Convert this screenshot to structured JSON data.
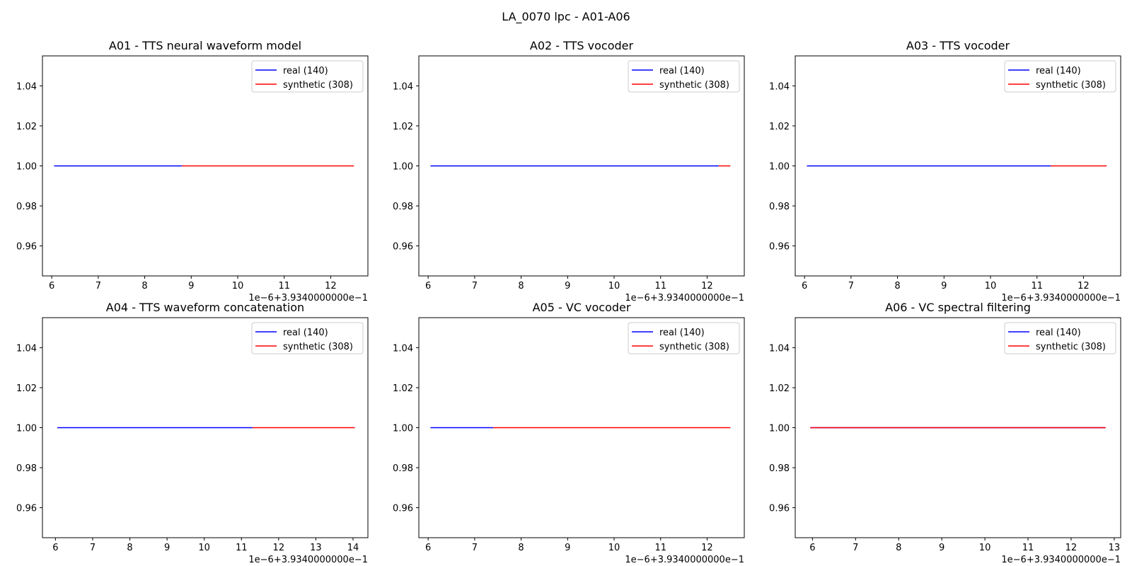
{
  "figure": {
    "title": "LA_0070 lpc - A01-A06"
  },
  "colors": {
    "real": "#0000ff",
    "synthetic": "#ff0000"
  },
  "chart_data": [
    {
      "type": "line",
      "title": "A01 - TTS neural waveform model",
      "x_offset_label": "1e−6+3.9340000000e−1",
      "xticks": [
        6,
        7,
        8,
        9,
        10,
        11,
        12
      ],
      "xlim": [
        5.8,
        12.8
      ],
      "yticks": [
        "0.96",
        "0.98",
        "1.00",
        "1.02",
        "1.04"
      ],
      "ylim": [
        0.945,
        1.055
      ],
      "legend": "top-right",
      "series": [
        {
          "name": "real (140)",
          "color": "#0000ff",
          "x": [
            6.05,
            8.8
          ],
          "y": [
            1.0,
            1.0
          ]
        },
        {
          "name": "synthetic (308)",
          "color": "#ff0000",
          "x": [
            8.8,
            12.5
          ],
          "y": [
            1.0,
            1.0
          ]
        }
      ]
    },
    {
      "type": "line",
      "title": "A02 - TTS vocoder",
      "x_offset_label": "1e−6+3.9340000000e−1",
      "xticks": [
        6,
        7,
        8,
        9,
        10,
        11,
        12
      ],
      "xlim": [
        5.8,
        12.8
      ],
      "yticks": [
        "0.96",
        "0.98",
        "1.00",
        "1.02",
        "1.04"
      ],
      "ylim": [
        0.945,
        1.055
      ],
      "legend": "top-right",
      "series": [
        {
          "name": "real (140)",
          "color": "#0000ff",
          "x": [
            6.05,
            12.25
          ],
          "y": [
            1.0,
            1.0
          ]
        },
        {
          "name": "synthetic (308)",
          "color": "#ff0000",
          "x": [
            12.25,
            12.5
          ],
          "y": [
            1.0,
            1.0
          ]
        }
      ]
    },
    {
      "type": "line",
      "title": "A03 - TTS vocoder",
      "x_offset_label": "1e−6+3.9340000000e−1",
      "xticks": [
        6,
        7,
        8,
        9,
        10,
        11,
        12
      ],
      "xlim": [
        5.8,
        12.8
      ],
      "yticks": [
        "0.96",
        "0.98",
        "1.00",
        "1.02",
        "1.04"
      ],
      "ylim": [
        0.945,
        1.055
      ],
      "legend": "top-right",
      "series": [
        {
          "name": "real (140)",
          "color": "#0000ff",
          "x": [
            6.05,
            11.3
          ],
          "y": [
            1.0,
            1.0
          ]
        },
        {
          "name": "synthetic (308)",
          "color": "#ff0000",
          "x": [
            11.3,
            12.5
          ],
          "y": [
            1.0,
            1.0
          ]
        }
      ]
    },
    {
      "type": "line",
      "title": "A04 - TTS waveform concatenation",
      "x_offset_label": "1e−6+3.9340000000e−1",
      "xticks": [
        6,
        7,
        8,
        9,
        10,
        11,
        12,
        13,
        14
      ],
      "xlim": [
        5.65,
        14.4
      ],
      "yticks": [
        "0.96",
        "0.98",
        "1.00",
        "1.02",
        "1.04"
      ],
      "ylim": [
        0.945,
        1.055
      ],
      "legend": "top-right",
      "series": [
        {
          "name": "real (140)",
          "color": "#0000ff",
          "x": [
            6.05,
            11.3
          ],
          "y": [
            1.0,
            1.0
          ]
        },
        {
          "name": "synthetic (308)",
          "color": "#ff0000",
          "x": [
            11.3,
            14.05
          ],
          "y": [
            1.0,
            1.0
          ]
        }
      ]
    },
    {
      "type": "line",
      "title": "A05 - VC vocoder",
      "x_offset_label": "1e−6+3.9340000000e−1",
      "xticks": [
        6,
        7,
        8,
        9,
        10,
        11,
        12
      ],
      "xlim": [
        5.8,
        12.8
      ],
      "yticks": [
        "0.96",
        "0.98",
        "1.00",
        "1.02",
        "1.04"
      ],
      "ylim": [
        0.945,
        1.055
      ],
      "legend": "top-right",
      "series": [
        {
          "name": "real (140)",
          "color": "#0000ff",
          "x": [
            6.05,
            7.4
          ],
          "y": [
            1.0,
            1.0
          ]
        },
        {
          "name": "synthetic (308)",
          "color": "#ff0000",
          "x": [
            7.4,
            12.5
          ],
          "y": [
            1.0,
            1.0
          ]
        }
      ]
    },
    {
      "type": "line",
      "title": "A06 - VC spectral filtering",
      "x_offset_label": "1e−6+3.9340000000e−1",
      "xticks": [
        6,
        7,
        8,
        9,
        10,
        11,
        12,
        13
      ],
      "xlim": [
        5.6,
        13.15
      ],
      "yticks": [
        "0.96",
        "0.98",
        "1.00",
        "1.02",
        "1.04"
      ],
      "ylim": [
        0.945,
        1.055
      ],
      "legend": "top-right",
      "series": [
        {
          "name": "real (140)",
          "color": "#0000ff",
          "x": [
            5.95,
            12.8
          ],
          "y": [
            1.0,
            1.0
          ]
        },
        {
          "name": "synthetic (308)",
          "color": "#ff0000",
          "x": [
            5.95,
            12.8
          ],
          "y": [
            1.0,
            1.0
          ]
        }
      ]
    }
  ]
}
